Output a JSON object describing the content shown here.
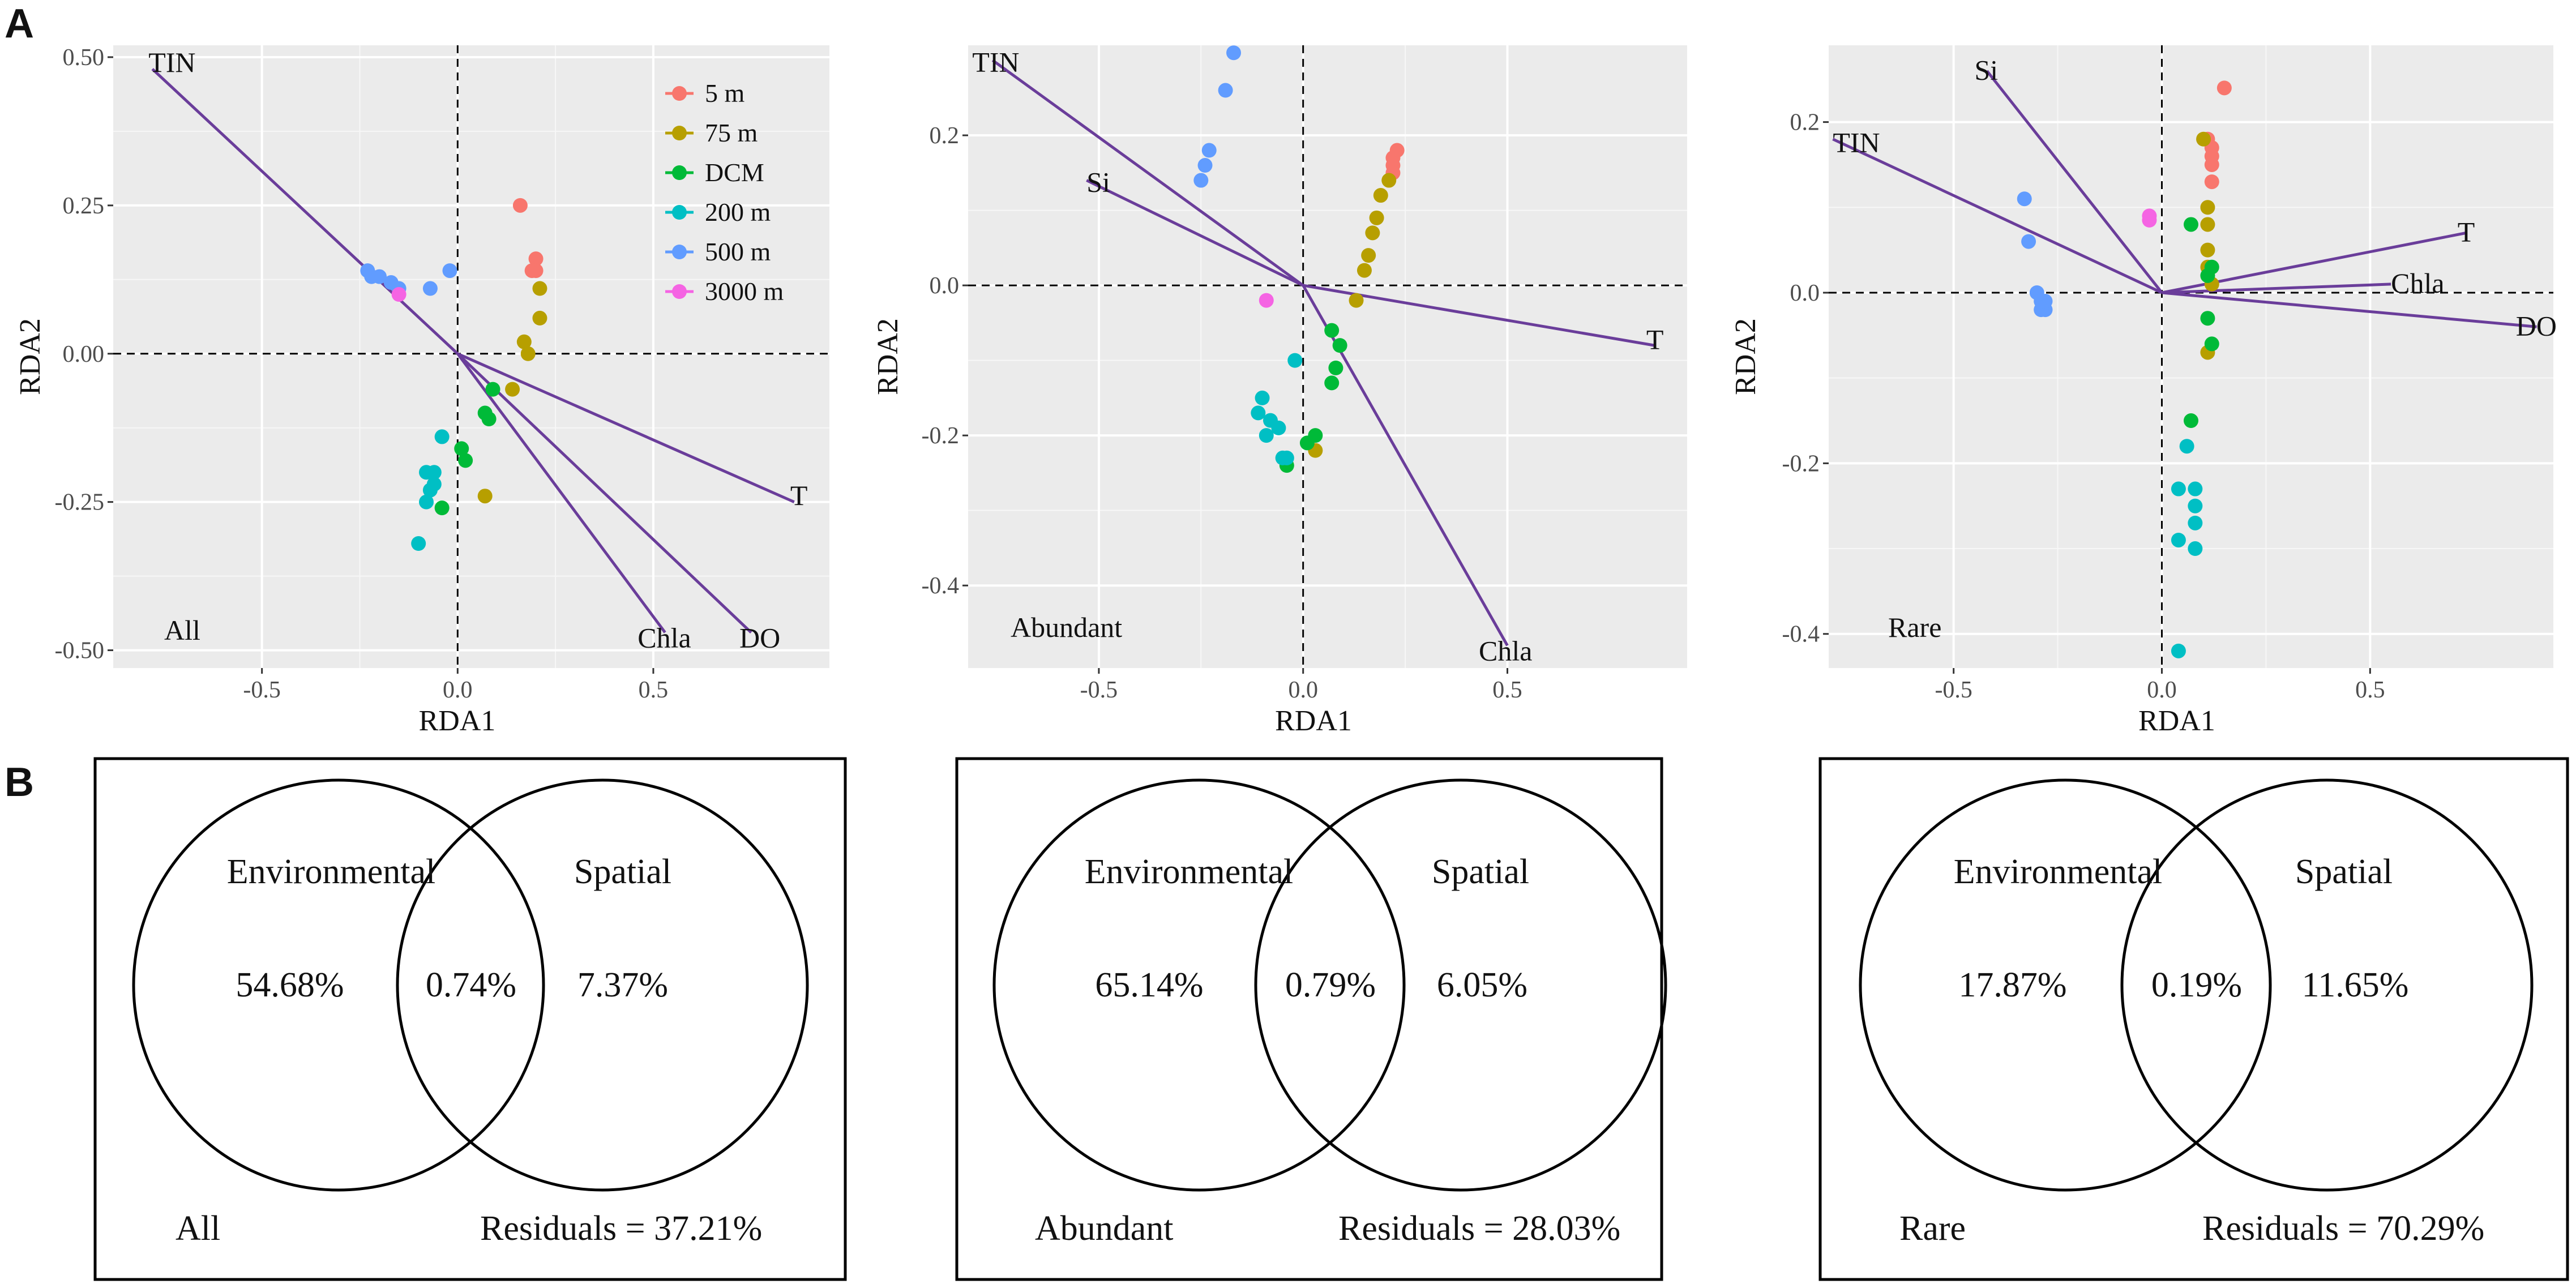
{
  "panel_labels": {
    "a": "A",
    "b": "B"
  },
  "colors": {
    "panel_bg": "#ebebeb",
    "grid_major": "#ffffff",
    "arrow": "#6a3d9a",
    "depth": {
      "5 m": "#f8766d",
      "75 m": "#b79f00",
      "DCM": "#00ba38",
      "200 m": "#00bfc4",
      "500 m": "#619cff",
      "3000 m": "#f564e3"
    }
  },
  "legend": {
    "entries": [
      "5 m",
      "75 m",
      "DCM",
      "200 m",
      "500 m",
      "3000 m"
    ]
  },
  "chart_data": [
    {
      "type": "scatter",
      "title": "All",
      "xlabel": "RDA1",
      "ylabel": "RDA2",
      "xlim": [
        -0.88,
        0.95
      ],
      "ylim": [
        -0.53,
        0.52
      ],
      "xticks": [
        -0.5,
        0.0,
        0.5
      ],
      "xtick_labels": [
        "-0.5",
        "0.0",
        "0.5"
      ],
      "yticks": [
        -0.5,
        -0.25,
        0.0,
        0.25,
        0.5
      ],
      "ytick_labels": [
        "-0.50",
        "-0.25",
        "0.00",
        "0.25",
        "0.50"
      ],
      "arrows": [
        {
          "name": "TIN",
          "x": -0.78,
          "y": 0.48,
          "lx": -0.79,
          "ly": 0.475
        },
        {
          "name": "T",
          "x": 0.86,
          "y": -0.25,
          "lx": 0.85,
          "ly": -0.255
        },
        {
          "name": "Chla",
          "x": 0.53,
          "y": -0.47,
          "lx": 0.46,
          "ly": -0.495
        },
        {
          "name": "DO",
          "x": 0.75,
          "y": -0.47,
          "lx": 0.72,
          "ly": -0.495
        }
      ],
      "series": [
        {
          "name": "5 m",
          "points": [
            [
              0.16,
              0.25
            ],
            [
              0.19,
              0.14
            ],
            [
              0.2,
              0.16
            ],
            [
              0.2,
              0.14
            ]
          ]
        },
        {
          "name": "75 m",
          "points": [
            [
              0.21,
              0.11
            ],
            [
              0.21,
              0.06
            ],
            [
              0.17,
              0.02
            ],
            [
              0.18,
              0.0
            ],
            [
              0.14,
              -0.06
            ],
            [
              0.07,
              -0.24
            ]
          ]
        },
        {
          "name": "DCM",
          "points": [
            [
              0.09,
              -0.06
            ],
            [
              0.07,
              -0.1
            ],
            [
              0.08,
              -0.11
            ],
            [
              0.01,
              -0.16
            ],
            [
              0.02,
              -0.18
            ],
            [
              -0.04,
              -0.26
            ]
          ]
        },
        {
          "name": "200 m",
          "points": [
            [
              -0.04,
              -0.14
            ],
            [
              -0.08,
              -0.2
            ],
            [
              -0.06,
              -0.2
            ],
            [
              -0.07,
              -0.23
            ],
            [
              -0.06,
              -0.22
            ],
            [
              -0.08,
              -0.25
            ],
            [
              -0.1,
              -0.32
            ]
          ]
        },
        {
          "name": "500 m",
          "points": [
            [
              -0.23,
              0.14
            ],
            [
              -0.22,
              0.13
            ],
            [
              -0.2,
              0.13
            ],
            [
              -0.17,
              0.12
            ],
            [
              -0.15,
              0.11
            ],
            [
              -0.07,
              0.11
            ],
            [
              -0.02,
              0.14
            ]
          ]
        },
        {
          "name": "3000 m",
          "points": [
            [
              -0.15,
              0.1
            ]
          ]
        }
      ]
    },
    {
      "type": "scatter",
      "title": "Abundant",
      "xlabel": "RDA1",
      "ylabel": "RDA2",
      "xlim": [
        -0.82,
        0.94
      ],
      "ylim": [
        -0.51,
        0.32
      ],
      "xticks": [
        -0.5,
        0.0,
        0.5
      ],
      "xtick_labels": [
        "-0.5",
        "0.0",
        "0.5"
      ],
      "yticks": [
        -0.4,
        -0.2,
        0.0,
        0.2
      ],
      "ytick_labels": [
        "-0.4",
        "-0.2",
        "0.0",
        "0.2"
      ],
      "arrows": [
        {
          "name": "TIN",
          "x": -0.76,
          "y": 0.3,
          "lx": -0.81,
          "ly": 0.285
        },
        {
          "name": "Si",
          "x": -0.53,
          "y": 0.14,
          "lx": -0.53,
          "ly": 0.125
        },
        {
          "name": "T",
          "x": 0.86,
          "y": -0.08,
          "lx": 0.84,
          "ly": -0.085
        },
        {
          "name": "Chla",
          "x": 0.5,
          "y": -0.48,
          "lx": 0.43,
          "ly": -0.5
        }
      ],
      "series": [
        {
          "name": "5 m",
          "points": [
            [
              0.23,
              0.18
            ],
            [
              0.22,
              0.17
            ],
            [
              0.22,
              0.16
            ],
            [
              0.22,
              0.15
            ]
          ]
        },
        {
          "name": "75 m",
          "points": [
            [
              0.21,
              0.14
            ],
            [
              0.19,
              0.12
            ],
            [
              0.18,
              0.09
            ],
            [
              0.17,
              0.07
            ],
            [
              0.16,
              0.04
            ],
            [
              0.15,
              0.02
            ],
            [
              0.13,
              -0.02
            ],
            [
              0.03,
              -0.22
            ]
          ]
        },
        {
          "name": "DCM",
          "points": [
            [
              0.07,
              -0.06
            ],
            [
              0.09,
              -0.08
            ],
            [
              0.08,
              -0.11
            ],
            [
              0.07,
              -0.13
            ],
            [
              0.03,
              -0.2
            ],
            [
              0.01,
              -0.21
            ],
            [
              -0.04,
              -0.24
            ]
          ]
        },
        {
          "name": "200 m",
          "points": [
            [
              -0.1,
              -0.15
            ],
            [
              -0.11,
              -0.17
            ],
            [
              -0.08,
              -0.18
            ],
            [
              -0.06,
              -0.19
            ],
            [
              -0.09,
              -0.2
            ],
            [
              -0.04,
              -0.23
            ],
            [
              -0.05,
              -0.23
            ],
            [
              -0.02,
              -0.1
            ]
          ]
        },
        {
          "name": "500 m",
          "points": [
            [
              -0.17,
              0.31
            ],
            [
              -0.19,
              0.26
            ],
            [
              -0.23,
              0.18
            ],
            [
              -0.24,
              0.16
            ],
            [
              -0.25,
              0.14
            ]
          ]
        },
        {
          "name": "3000 m",
          "points": [
            [
              -0.09,
              -0.02
            ]
          ]
        }
      ]
    },
    {
      "type": "scatter",
      "title": "Rare",
      "xlabel": "RDA1",
      "ylabel": "RDA2",
      "xlim": [
        -0.8,
        0.94
      ],
      "ylim": [
        -0.44,
        0.29
      ],
      "xticks": [
        -0.5,
        0.0,
        0.5
      ],
      "xtick_labels": [
        "-0.5",
        "0.0",
        "0.5"
      ],
      "yticks": [
        -0.4,
        -0.2,
        0.0,
        0.2
      ],
      "ytick_labels": [
        "-0.4",
        "-0.2",
        "0.0",
        "0.2"
      ],
      "arrows": [
        {
          "name": "Si",
          "x": -0.42,
          "y": 0.26,
          "lx": -0.45,
          "ly": 0.25
        },
        {
          "name": "TIN",
          "x": -0.79,
          "y": 0.18,
          "lx": -0.79,
          "ly": 0.165
        },
        {
          "name": "T",
          "x": 0.73,
          "y": 0.07,
          "lx": 0.71,
          "ly": 0.06
        },
        {
          "name": "Chla",
          "x": 0.55,
          "y": 0.01,
          "lx": 0.55,
          "ly": 0.0
        },
        {
          "name": "DO",
          "x": 0.9,
          "y": -0.04,
          "lx": 0.85,
          "ly": -0.05
        }
      ],
      "series": [
        {
          "name": "5 m",
          "points": [
            [
              0.15,
              0.24
            ],
            [
              0.11,
              0.18
            ],
            [
              0.12,
              0.17
            ],
            [
              0.12,
              0.16
            ],
            [
              0.12,
              0.15
            ],
            [
              0.12,
              0.13
            ]
          ]
        },
        {
          "name": "75 m",
          "points": [
            [
              0.1,
              0.18
            ],
            [
              0.11,
              0.1
            ],
            [
              0.11,
              0.08
            ],
            [
              0.11,
              0.05
            ],
            [
              0.11,
              0.03
            ],
            [
              0.12,
              0.01
            ],
            [
              0.11,
              -0.07
            ]
          ]
        },
        {
          "name": "DCM",
          "points": [
            [
              0.07,
              0.08
            ],
            [
              0.12,
              0.03
            ],
            [
              0.11,
              0.02
            ],
            [
              0.11,
              -0.03
            ],
            [
              0.12,
              -0.06
            ],
            [
              0.07,
              -0.15
            ]
          ]
        },
        {
          "name": "200 m",
          "points": [
            [
              0.06,
              -0.18
            ],
            [
              0.08,
              -0.23
            ],
            [
              0.04,
              -0.23
            ],
            [
              0.08,
              -0.25
            ],
            [
              0.08,
              -0.27
            ],
            [
              0.04,
              -0.29
            ],
            [
              0.08,
              -0.3
            ],
            [
              0.04,
              -0.42
            ]
          ]
        },
        {
          "name": "500 m",
          "points": [
            [
              -0.33,
              0.11
            ],
            [
              -0.32,
              0.06
            ],
            [
              -0.3,
              0.0
            ],
            [
              -0.29,
              -0.01
            ],
            [
              -0.28,
              -0.02
            ],
            [
              -0.29,
              -0.02
            ],
            [
              -0.28,
              -0.01
            ]
          ]
        },
        {
          "name": "3000 m",
          "points": [
            [
              -0.03,
              0.09
            ],
            [
              -0.03,
              0.085
            ]
          ]
        }
      ]
    }
  ],
  "venn": [
    {
      "group": "All",
      "environmental_label": "Environmental",
      "spatial_label": "Spatial",
      "environmental": "54.68%",
      "shared": "0.74%",
      "spatial": "7.37%",
      "residuals": "Residuals = 37.21%"
    },
    {
      "group": "Abundant",
      "environmental_label": "Environmental",
      "spatial_label": "Spatial",
      "environmental": "65.14%",
      "shared": "0.79%",
      "spatial": "6.05%",
      "residuals": "Residuals = 28.03%"
    },
    {
      "group": "Rare",
      "environmental_label": "Environmental",
      "spatial_label": "Spatial",
      "environmental": "17.87%",
      "shared": "0.19%",
      "spatial": "11.65%",
      "residuals": "Residuals = 70.29%"
    }
  ]
}
